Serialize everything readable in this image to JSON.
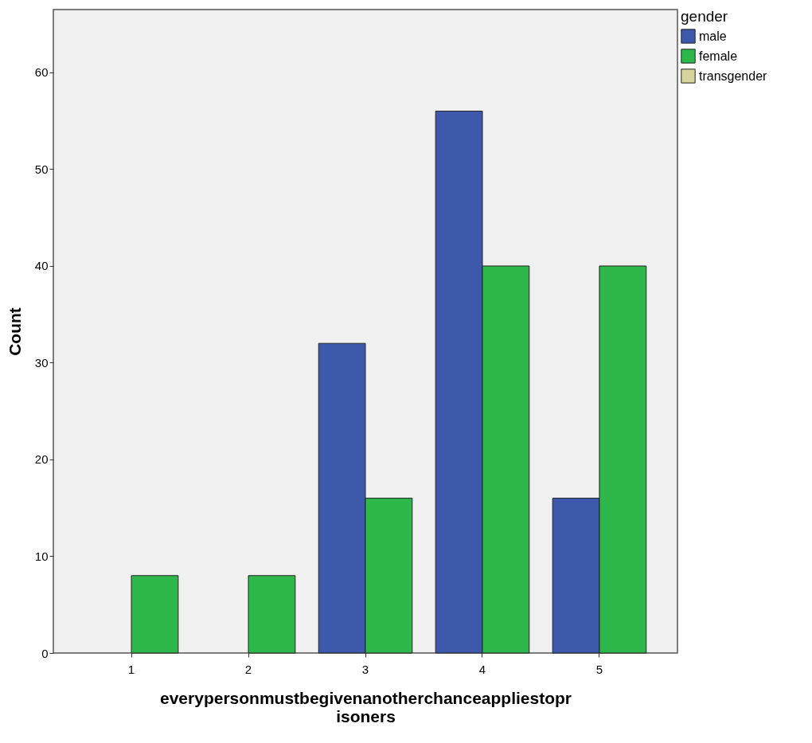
{
  "chart_data": {
    "type": "bar",
    "xlabel": "everypersonmustbegivenanotherchanceappliestoprisoners",
    "ylabel": "Count",
    "legend_title": "gender",
    "categories": [
      "1",
      "2",
      "3",
      "4",
      "5"
    ],
    "series": [
      {
        "name": "male",
        "color": "#3e58ac",
        "values": [
          null,
          null,
          32,
          56,
          16
        ]
      },
      {
        "name": "female",
        "color": "#2eb84b",
        "values": [
          8,
          8,
          16,
          40,
          40
        ]
      },
      {
        "name": "transgender",
        "color": "#d6d49b",
        "values": [
          null,
          null,
          null,
          null,
          null
        ]
      }
    ],
    "ylim": [
      0,
      66.5
    ],
    "yticks": [
      0,
      10,
      20,
      30,
      40,
      50,
      60
    ],
    "grid": false,
    "legend": "top right"
  }
}
